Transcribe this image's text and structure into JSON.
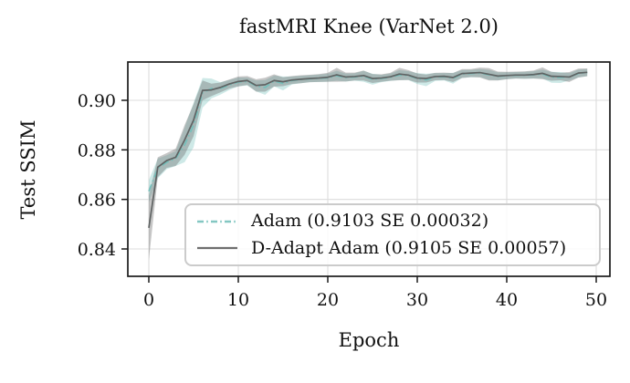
{
  "figure": {
    "background": "#ffffff",
    "text_color": "#111111",
    "grid_color": "#dcdcdc",
    "spine_color": "#1a1a1a"
  },
  "chart_data": {
    "type": "line",
    "title": "fastMRI Knee (VarNet 2.0)",
    "xlabel": "Epoch",
    "ylabel": "Test SSIM",
    "x_ticks": [
      0,
      10,
      20,
      30,
      40,
      50
    ],
    "y_ticks": [
      0.84,
      0.86,
      0.88,
      0.9
    ],
    "xlim": [
      -2.3,
      51.5
    ],
    "ylim": [
      0.829,
      0.9155
    ],
    "grid": true,
    "legend_position": "lower right inside axes",
    "x": [
      0,
      1,
      2,
      3,
      4,
      5,
      6,
      7,
      8,
      9,
      10,
      11,
      12,
      13,
      14,
      15,
      16,
      17,
      18,
      19,
      20,
      21,
      22,
      23,
      24,
      25,
      26,
      27,
      28,
      29,
      30,
      31,
      32,
      33,
      34,
      35,
      36,
      37,
      38,
      39,
      40,
      41,
      42,
      43,
      44,
      45,
      46,
      47,
      48,
      49
    ],
    "series": [
      {
        "name": "Adam (0.9103 SE 0.00032)",
        "mean": 0.9103,
        "se_final": 0.00032,
        "color": "#74c0bb",
        "band_color": "rgba(116,192,187,0.35)",
        "linestyle": "dashdot",
        "values": [
          0.8633,
          0.8725,
          0.875,
          0.8765,
          0.882,
          0.89,
          0.903,
          0.9048,
          0.9048,
          0.9062,
          0.9074,
          0.9076,
          0.9058,
          0.9052,
          0.9078,
          0.9068,
          0.908,
          0.9084,
          0.9087,
          0.9089,
          0.9091,
          0.9099,
          0.9092,
          0.9094,
          0.9097,
          0.9085,
          0.9088,
          0.9093,
          0.9102,
          0.91,
          0.9088,
          0.9082,
          0.9094,
          0.9095,
          0.9089,
          0.9106,
          0.9108,
          0.911,
          0.9103,
          0.9097,
          0.9099,
          0.9101,
          0.9101,
          0.9103,
          0.9106,
          0.9093,
          0.9092,
          0.9095,
          0.9108,
          0.9112
        ],
        "se": [
          0.0045,
          0.004,
          0.0028,
          0.003,
          0.007,
          0.009,
          0.006,
          0.004,
          0.0025,
          0.002,
          0.0018,
          0.0016,
          0.0022,
          0.003,
          0.0022,
          0.0028,
          0.0016,
          0.0015,
          0.0014,
          0.0015,
          0.0016,
          0.002,
          0.0016,
          0.0015,
          0.0022,
          0.0022,
          0.0015,
          0.0015,
          0.002,
          0.0018,
          0.0022,
          0.0025,
          0.0016,
          0.0015,
          0.0022,
          0.0016,
          0.0015,
          0.0016,
          0.002,
          0.0016,
          0.0014,
          0.0013,
          0.0014,
          0.0015,
          0.0018,
          0.0022,
          0.0022,
          0.0015,
          0.0016,
          0.0014
        ]
      },
      {
        "name": "D-Adapt Adam (0.9105 SE 0.00057)",
        "mean": 0.9105,
        "se_final": 0.00057,
        "color": "#5f6363",
        "band_color": "rgba(105,105,105,0.38)",
        "linestyle": "solid",
        "values": [
          0.8485,
          0.873,
          0.8757,
          0.877,
          0.884,
          0.892,
          0.904,
          0.9042,
          0.9052,
          0.9066,
          0.9076,
          0.908,
          0.906,
          0.9063,
          0.908,
          0.9075,
          0.9082,
          0.9085,
          0.9088,
          0.909,
          0.9093,
          0.9103,
          0.9094,
          0.9096,
          0.91,
          0.9088,
          0.909,
          0.9095,
          0.9106,
          0.9102,
          0.909,
          0.9088,
          0.9096,
          0.9097,
          0.9092,
          0.9108,
          0.911,
          0.9112,
          0.9105,
          0.9098,
          0.91,
          0.9102,
          0.9102,
          0.9104,
          0.9109,
          0.9097,
          0.9096,
          0.9094,
          0.911,
          0.9113
        ],
        "se": [
          0.013,
          0.004,
          0.003,
          0.0035,
          0.006,
          0.0065,
          0.004,
          0.0025,
          0.002,
          0.0018,
          0.002,
          0.0018,
          0.0025,
          0.0028,
          0.0025,
          0.0018,
          0.0016,
          0.0016,
          0.0015,
          0.0016,
          0.0018,
          0.0028,
          0.0018,
          0.0016,
          0.002,
          0.0018,
          0.0015,
          0.0016,
          0.0025,
          0.002,
          0.0018,
          0.0016,
          0.0015,
          0.0015,
          0.0018,
          0.0018,
          0.0016,
          0.002,
          0.0025,
          0.0018,
          0.0015,
          0.0014,
          0.0015,
          0.0016,
          0.0024,
          0.0018,
          0.0015,
          0.002,
          0.0018,
          0.0016
        ]
      }
    ]
  }
}
